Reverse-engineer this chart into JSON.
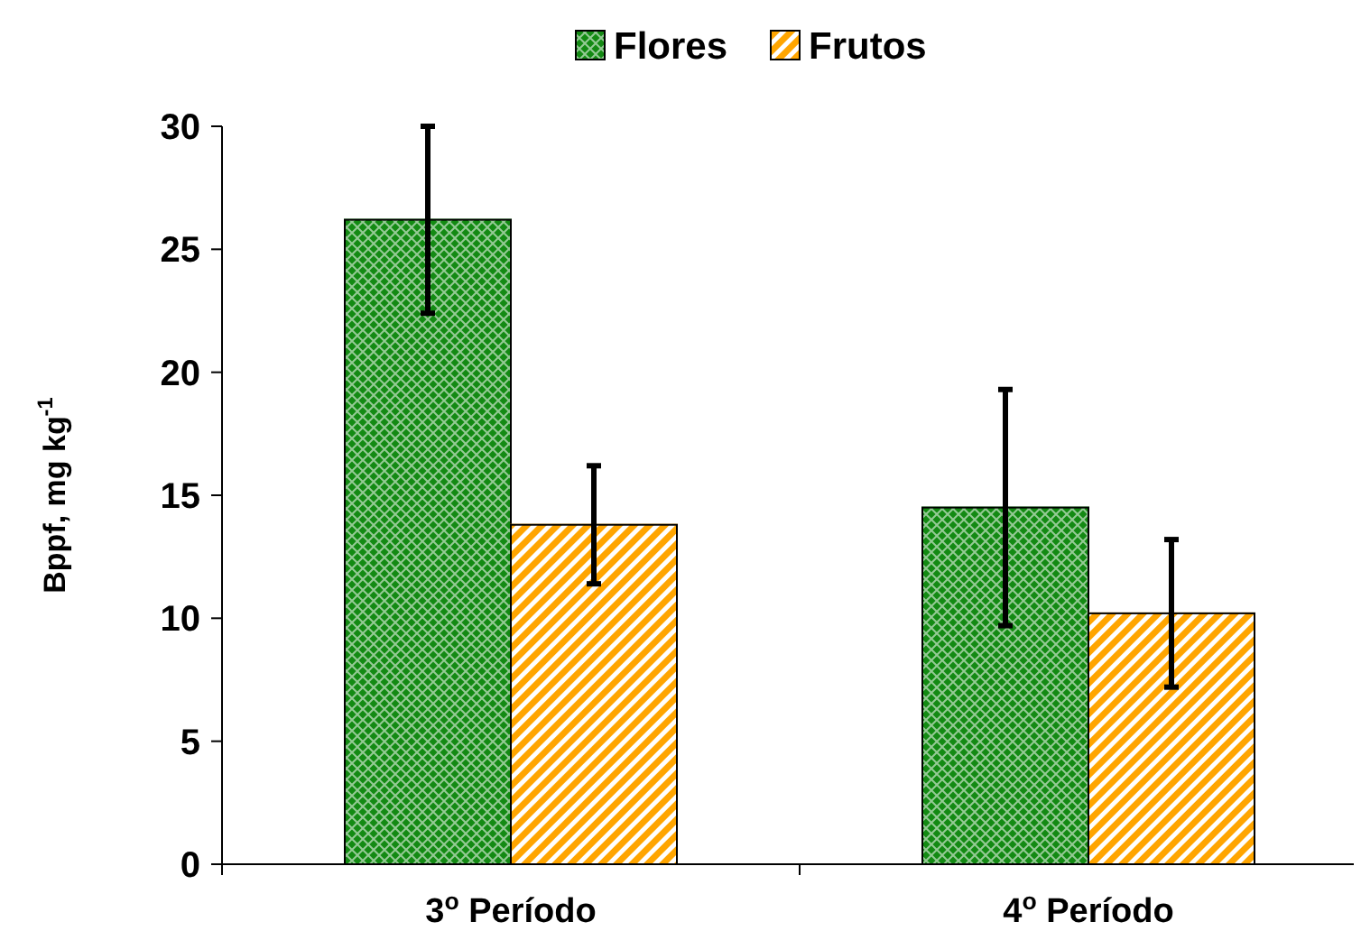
{
  "chart_data": {
    "type": "bar",
    "ylabel": "Bppf,  mg kg$^{-1}$",
    "categories": [
      "3$^{o}$ Período",
      "4$^{o}$ Período"
    ],
    "series": [
      {
        "name": "Flores",
        "color": "#138a13",
        "values": [
          26.2,
          14.5
        ],
        "errors": [
          3.8,
          4.8
        ]
      },
      {
        "name": "Frutos",
        "color": "#ffa500",
        "values": [
          13.8,
          10.2
        ],
        "errors": [
          2.4,
          3.0
        ]
      }
    ],
    "ylim": [
      0,
      30
    ],
    "yticks": [
      0,
      5,
      10,
      15,
      20,
      25,
      30
    ],
    "grid": false,
    "legend": "top"
  }
}
